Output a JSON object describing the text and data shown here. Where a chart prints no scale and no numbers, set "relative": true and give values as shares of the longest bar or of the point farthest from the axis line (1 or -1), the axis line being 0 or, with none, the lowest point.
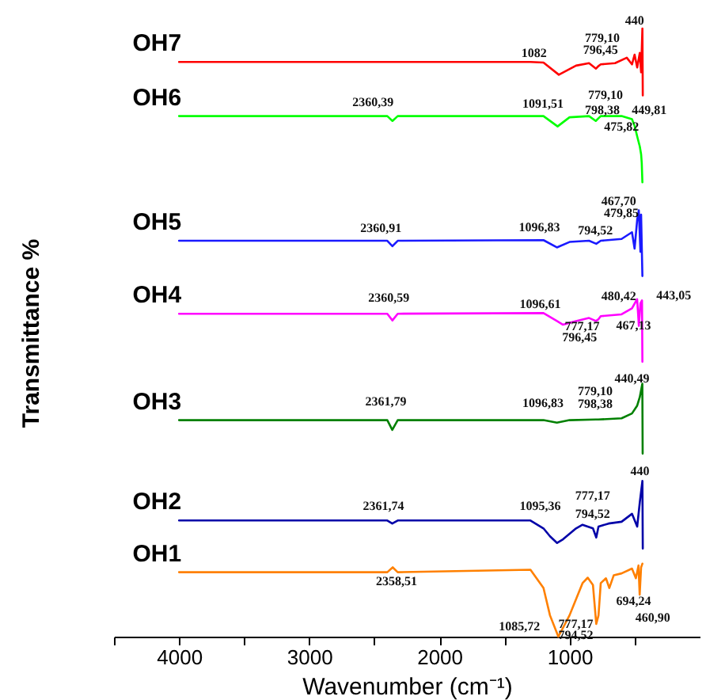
{
  "chart_data": {
    "type": "line",
    "relative": true,
    "xlabel": "Wavenumber (cm⁻¹)",
    "ylabel": "Transmittance %",
    "xlim": [
      4500,
      0
    ],
    "xticks": [
      {
        "value": 4500,
        "label": null
      },
      4000,
      {
        "value": 3500,
        "label": null
      },
      3000,
      {
        "value": 2500,
        "label": null
      },
      2000,
      {
        "value": 1500,
        "label": null
      },
      1000,
      {
        "value": 500,
        "label": null
      }
    ],
    "series": [
      {
        "name": "OH7",
        "color": "#ff0000",
        "x": [
          4000,
          2500,
          1300,
          1200,
          1082,
          950,
          850,
          796.45,
          779.1,
          760,
          650,
          560,
          520,
          500,
          480,
          460,
          450,
          440,
          437
        ],
        "values": [
          0.945,
          0.945,
          0.945,
          0.944,
          0.924,
          0.939,
          0.943,
          0.934,
          0.938,
          0.941,
          0.943,
          0.952,
          0.941,
          0.957,
          0.936,
          0.96,
          0.928,
          1.0,
          0.89
        ]
      },
      {
        "name": "OH6",
        "color": "#00ff00",
        "x": [
          4000,
          2400,
          2360.39,
          2320,
          1200,
          1091.51,
          1000,
          850,
          798.38,
          779.1,
          760,
          600,
          520,
          500,
          475.82,
          460,
          449.81,
          445,
          440
        ],
        "values": [
          0.856,
          0.856,
          0.848,
          0.856,
          0.856,
          0.839,
          0.854,
          0.856,
          0.848,
          0.852,
          0.856,
          0.856,
          0.851,
          0.84,
          0.819,
          0.806,
          0.793,
          0.779,
          0.747
        ]
      },
      {
        "name": "OH5",
        "color": "#1a1aff",
        "x": [
          4000,
          2400,
          2360.91,
          2320,
          1200,
          1096.83,
          1000,
          850,
          794.52,
          760,
          600,
          520,
          500,
          479.85,
          467.7,
          455,
          450,
          440
        ],
        "values": [
          0.651,
          0.651,
          0.642,
          0.651,
          0.652,
          0.64,
          0.649,
          0.651,
          0.646,
          0.651,
          0.654,
          0.665,
          0.638,
          0.686,
          0.701,
          0.633,
          0.694,
          0.593
        ]
      },
      {
        "name": "OH4",
        "color": "#ff00ff",
        "x": [
          4000,
          2400,
          2360.59,
          2320,
          1200,
          1096.61,
          1050,
          950,
          850,
          796.45,
          777.17,
          760,
          600,
          520,
          480.42,
          467.13,
          455,
          443.05,
          440
        ],
        "values": [
          0.531,
          0.531,
          0.52,
          0.531,
          0.532,
          0.519,
          0.513,
          0.519,
          0.524,
          0.519,
          0.522,
          0.527,
          0.53,
          0.54,
          0.555,
          0.511,
          0.548,
          0.553,
          0.452
        ]
      },
      {
        "name": "OH3",
        "color": "#008000",
        "x": [
          4000,
          2400,
          2361.79,
          2320,
          1200,
          1096.83,
          1000,
          798.38,
          779.1,
          600,
          520,
          480,
          460,
          440.49,
          438
        ],
        "values": [
          0.356,
          0.356,
          0.34,
          0.356,
          0.356,
          0.352,
          0.356,
          0.357,
          0.357,
          0.359,
          0.367,
          0.38,
          0.394,
          0.416,
          0.301
        ]
      },
      {
        "name": "OH2",
        "color": "#0000a8",
        "x": [
          4000,
          2400,
          2361.74,
          2320,
          1300,
          1200,
          1150,
          1095.36,
          1050,
          950,
          900,
          820,
          794.52,
          777.17,
          700,
          600,
          520,
          480,
          460,
          440,
          437
        ],
        "values": [
          0.191,
          0.191,
          0.186,
          0.191,
          0.191,
          0.178,
          0.165,
          0.154,
          0.16,
          0.178,
          0.184,
          0.178,
          0.163,
          0.181,
          0.186,
          0.189,
          0.202,
          0.181,
          0.221,
          0.256,
          0.145
        ]
      },
      {
        "name": "OH1",
        "color": "#ff8000",
        "x": [
          4000,
          2400,
          2358.51,
          2320,
          1300,
          1200,
          1150,
          1085.72,
          1000,
          900,
          860,
          820,
          794.52,
          777.17,
          760,
          720,
          694.24,
          660,
          600,
          520,
          490,
          470,
          460.9,
          450,
          440
        ],
        "values": [
          0.106,
          0.106,
          0.114,
          0.106,
          0.11,
          0.08,
          0.035,
          0,
          0.035,
          0.088,
          0.097,
          0.085,
          0.021,
          0.035,
          0.088,
          0.096,
          0.08,
          0.101,
          0.104,
          0.112,
          0.096,
          0.117,
          0.069,
          0.114,
          0.12
        ]
      }
    ],
    "annotations": [
      {
        "text": "440",
        "x": 440,
        "y": 1.0
      },
      {
        "text": "779,10",
        "x": 779.1,
        "y": 0.938
      },
      {
        "text": "796,45",
        "x": 796.45,
        "y": 0.934
      },
      {
        "text": "1082",
        "x": 1082,
        "y": 0.924
      },
      {
        "text": "2360,39",
        "x": 2360.39,
        "y": 0.848
      },
      {
        "text": "779,10",
        "x": 779.1,
        "y": 0.852
      },
      {
        "text": "1091,51",
        "x": 1091.51,
        "y": 0.839
      },
      {
        "text": "798,38",
        "x": 798.38,
        "y": 0.848
      },
      {
        "text": "449,81",
        "x": 449.81,
        "y": 0.793
      },
      {
        "text": "475,82",
        "x": 475.82,
        "y": 0.819
      },
      {
        "text": "467,70",
        "x": 467.7,
        "y": 0.701
      },
      {
        "text": "479,85",
        "x": 479.85,
        "y": 0.686
      },
      {
        "text": "2360,91",
        "x": 2360.91,
        "y": 0.642
      },
      {
        "text": "1096,83",
        "x": 1096.83,
        "y": 0.64
      },
      {
        "text": "794,52",
        "x": 794.52,
        "y": 0.646
      },
      {
        "text": "2360,59",
        "x": 2360.59,
        "y": 0.52
      },
      {
        "text": "1096,61",
        "x": 1096.61,
        "y": 0.519
      },
      {
        "text": "480,42",
        "x": 480.42,
        "y": 0.555
      },
      {
        "text": "443,05",
        "x": 443.05,
        "y": 0.553
      },
      {
        "text": "777,17",
        "x": 777.17,
        "y": 0.522
      },
      {
        "text": "467,13",
        "x": 467.13,
        "y": 0.511
      },
      {
        "text": "796,45",
        "x": 796.45,
        "y": 0.519
      },
      {
        "text": "440,49",
        "x": 440.49,
        "y": 0.416
      },
      {
        "text": "779,10",
        "x": 779.1,
        "y": 0.357
      },
      {
        "text": "2361,79",
        "x": 2361.79,
        "y": 0.34
      },
      {
        "text": "1096,83",
        "x": 1096.83,
        "y": 0.352
      },
      {
        "text": "798,38",
        "x": 798.38,
        "y": 0.357
      },
      {
        "text": "440",
        "x": 440,
        "y": 0.256
      },
      {
        "text": "777,17",
        "x": 777.17,
        "y": 0.181
      },
      {
        "text": "2361,74",
        "x": 2361.74,
        "y": 0.186
      },
      {
        "text": "1095,36",
        "x": 1095.36,
        "y": 0.154
      },
      {
        "text": "794,52",
        "x": 794.52,
        "y": 0.163
      },
      {
        "text": "2358,51",
        "x": 2358.51,
        "y": 0.114
      },
      {
        "text": "694,24",
        "x": 694.24,
        "y": 0.08
      },
      {
        "text": "1085,72",
        "x": 1085.72,
        "y": 0
      },
      {
        "text": "777,17",
        "x": 777.17,
        "y": 0.035
      },
      {
        "text": "460,90",
        "x": 460.9,
        "y": 0.069
      },
      {
        "text": "794,52",
        "x": 794.52,
        "y": 0.021
      }
    ]
  }
}
